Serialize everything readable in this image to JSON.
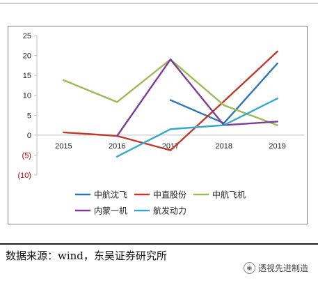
{
  "chart_data": {
    "type": "line",
    "categories": [
      "2015",
      "2016",
      "2017",
      "2018",
      "2019"
    ],
    "ylim": [
      -10,
      25
    ],
    "y_ticks": [
      {
        "value": 25,
        "label": "25"
      },
      {
        "value": 20,
        "label": "20"
      },
      {
        "value": 15,
        "label": "15"
      },
      {
        "value": 10,
        "label": "10"
      },
      {
        "value": 5,
        "label": "5"
      },
      {
        "value": 0,
        "label": "0"
      },
      {
        "value": -5,
        "label": "(5)"
      },
      {
        "value": -10,
        "label": "(10)"
      }
    ],
    "negative_label_color": "#c00000",
    "grid": false,
    "legend_position": "bottom",
    "series": [
      {
        "name": "中航沈飞",
        "color": "#2e75b6",
        "values": [
          null,
          null,
          8.8,
          3.0,
          18.0
        ]
      },
      {
        "name": "中直股份",
        "color": "#c0392b",
        "values": [
          0.7,
          -0.2,
          -3.8,
          8.5,
          21.0
        ]
      },
      {
        "name": "中航飞机",
        "color": "#9bbb59",
        "values": [
          13.8,
          8.3,
          19.0,
          7.5,
          2.5
        ]
      },
      {
        "name": "内蒙一机",
        "color": "#7d3c98",
        "values": [
          null,
          -0.2,
          19.0,
          2.5,
          3.4
        ]
      },
      {
        "name": "航发动力",
        "color": "#33a9c9",
        "values": [
          null,
          -5.4,
          1.5,
          2.5,
          9.2
        ]
      }
    ]
  },
  "source": {
    "text": "数据来源：wind，东吴证券研究所"
  },
  "watermark": {
    "text": "透视先进制造",
    "icon": "wechat-icon"
  }
}
